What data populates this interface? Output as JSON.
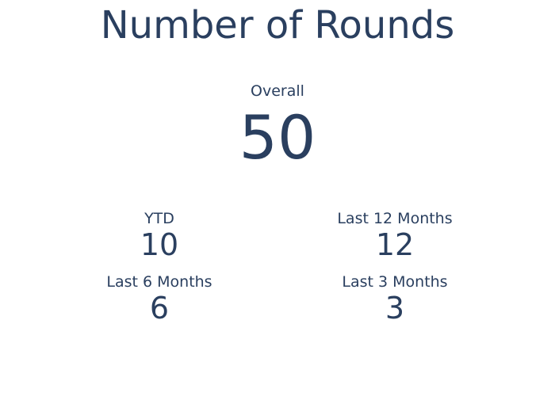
{
  "title": "Number of Rounds",
  "overall": {
    "label": "Overall",
    "value": "50"
  },
  "ytd": {
    "label": "YTD",
    "value": "10"
  },
  "last_12_months": {
    "label": "Last 12 Months",
    "value": "12"
  },
  "last_6_months": {
    "label": "Last 6 Months",
    "value": "6"
  },
  "last_3_months": {
    "label": "Last 3 Months",
    "value": "3"
  },
  "colors": {
    "text": "#2a3f5f",
    "background": "#ffffff"
  }
}
